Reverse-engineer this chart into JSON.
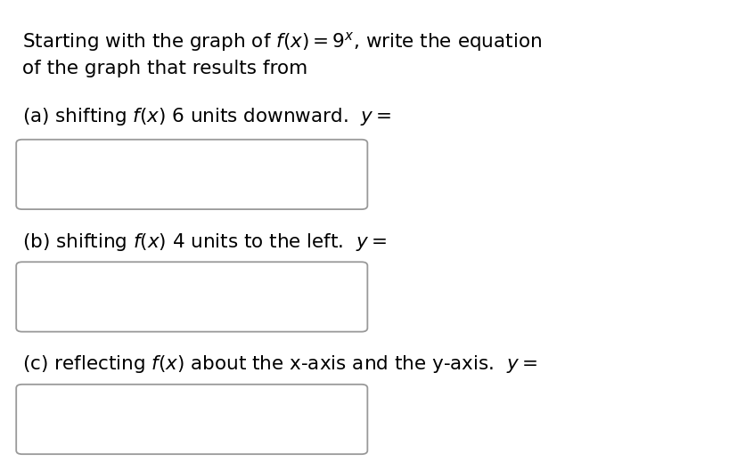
{
  "background_color": "#ffffff",
  "title_line1": "Starting with the graph of $f(x) = 9^{x}$, write the equation",
  "title_line2": "of the graph that results from",
  "part_a_label": "(a) shifting $f(x)$ 6 units downward.  $y =$",
  "part_b_label": "(b) shifting $f(x)$ 4 units to the left.  $y =$",
  "part_c_label": "(c) reflecting $f(x)$ about the x-axis and the y-axis.  $y =$",
  "text_color": "#000000",
  "box_edge_color": "#999999",
  "box_face_color": "#ffffff",
  "font_size": 15.5,
  "fig_width": 8.28,
  "fig_height": 5.19
}
